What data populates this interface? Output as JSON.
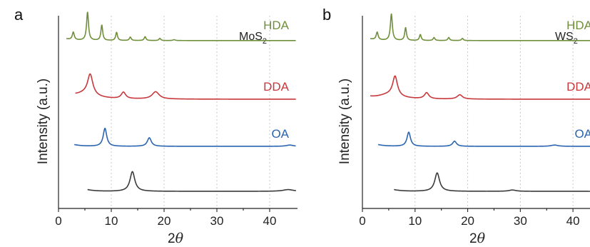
{
  "chart_data": [
    {
      "type": "line",
      "panel_label": "a",
      "sample": {
        "base": "MoS",
        "subscript": "2"
      },
      "xlabel": {
        "base": "2",
        "italic": "θ"
      },
      "ylabel": "Intensity (a.u.)",
      "xlim": [
        0,
        45
      ],
      "xticks": [
        0,
        10,
        20,
        30,
        40
      ],
      "grid": "vertical dashed",
      "series": [
        {
          "name": "HDA",
          "color": "#6f8f3a",
          "x_range": [
            1.5,
            45
          ],
          "baseline": 0.58,
          "peaks": [
            [
              2.8,
              0.18,
              0.22
            ],
            [
              5.5,
              0.66,
              0.22
            ],
            [
              8.2,
              0.36,
              0.2
            ],
            [
              11.0,
              0.19,
              0.2
            ],
            [
              13.6,
              0.08,
              0.2
            ],
            [
              16.4,
              0.09,
              0.2
            ],
            [
              19.2,
              0.05,
              0.2
            ],
            [
              21.9,
              0.02,
              0.25
            ]
          ]
        },
        {
          "name": "DDA",
          "color": "#c8373a",
          "x_range": [
            3.2,
            45
          ],
          "baseline": 1.95,
          "peaks": [
            [
              6.0,
              0.48,
              0.6
            ],
            [
              12.3,
              0.15,
              0.5
            ],
            [
              18.4,
              0.17,
              0.8
            ],
            [
              5.0,
              0.12,
              2.5
            ]
          ]
        },
        {
          "name": "OA",
          "color": "#2a64b0",
          "x_range": [
            3.0,
            45
          ],
          "baseline": 3.05,
          "peaks": [
            [
              8.8,
              0.42,
              0.4
            ],
            [
              17.2,
              0.2,
              0.45
            ],
            [
              43.8,
              0.03,
              0.8
            ]
          ]
        },
        {
          "name": "",
          "color": "#3a3a3a",
          "x_range": [
            5.5,
            45
          ],
          "baseline": 4.1,
          "peaks": [
            [
              14.0,
              0.46,
              0.55
            ],
            [
              43.5,
              0.04,
              1.2
            ]
          ]
        }
      ]
    },
    {
      "type": "line",
      "panel_label": "b",
      "sample": {
        "base": "WS",
        "subscript": "2"
      },
      "xlabel": {
        "base": "2",
        "italic": "θ"
      },
      "ylabel": "Intensity (a.u.)",
      "xlim": [
        0,
        45
      ],
      "xticks": [
        0,
        10,
        20,
        30,
        40
      ],
      "grid": "vertical dashed",
      "series": [
        {
          "name": "HDA",
          "color": "#6f8f3a",
          "x_range": [
            1.5,
            45
          ],
          "baseline": 0.58,
          "peaks": [
            [
              2.8,
              0.18,
              0.22
            ],
            [
              5.5,
              0.62,
              0.22
            ],
            [
              8.2,
              0.3,
              0.2
            ],
            [
              11.0,
              0.14,
              0.2
            ],
            [
              13.6,
              0.07,
              0.2
            ],
            [
              16.4,
              0.07,
              0.2
            ],
            [
              19.0,
              0.05,
              0.2
            ]
          ]
        },
        {
          "name": "DDA",
          "color": "#c8373a",
          "x_range": [
            1.5,
            45
          ],
          "baseline": 1.95,
          "peaks": [
            [
              6.2,
              0.46,
              0.55
            ],
            [
              12.2,
              0.14,
              0.5
            ],
            [
              18.5,
              0.1,
              0.6
            ],
            [
              5.0,
              0.1,
              2.5
            ]
          ]
        },
        {
          "name": "OA",
          "color": "#2a64b0",
          "x_range": [
            3.0,
            45
          ],
          "baseline": 3.05,
          "peaks": [
            [
              8.8,
              0.33,
              0.4
            ],
            [
              17.5,
              0.12,
              0.45
            ],
            [
              36.5,
              0.03,
              0.8
            ]
          ]
        },
        {
          "name": "",
          "color": "#3a3a3a",
          "x_range": [
            6.0,
            45
          ],
          "baseline": 4.1,
          "peaks": [
            [
              14.2,
              0.43,
              0.55
            ],
            [
              28.5,
              0.03,
              0.8
            ]
          ]
        }
      ]
    }
  ]
}
